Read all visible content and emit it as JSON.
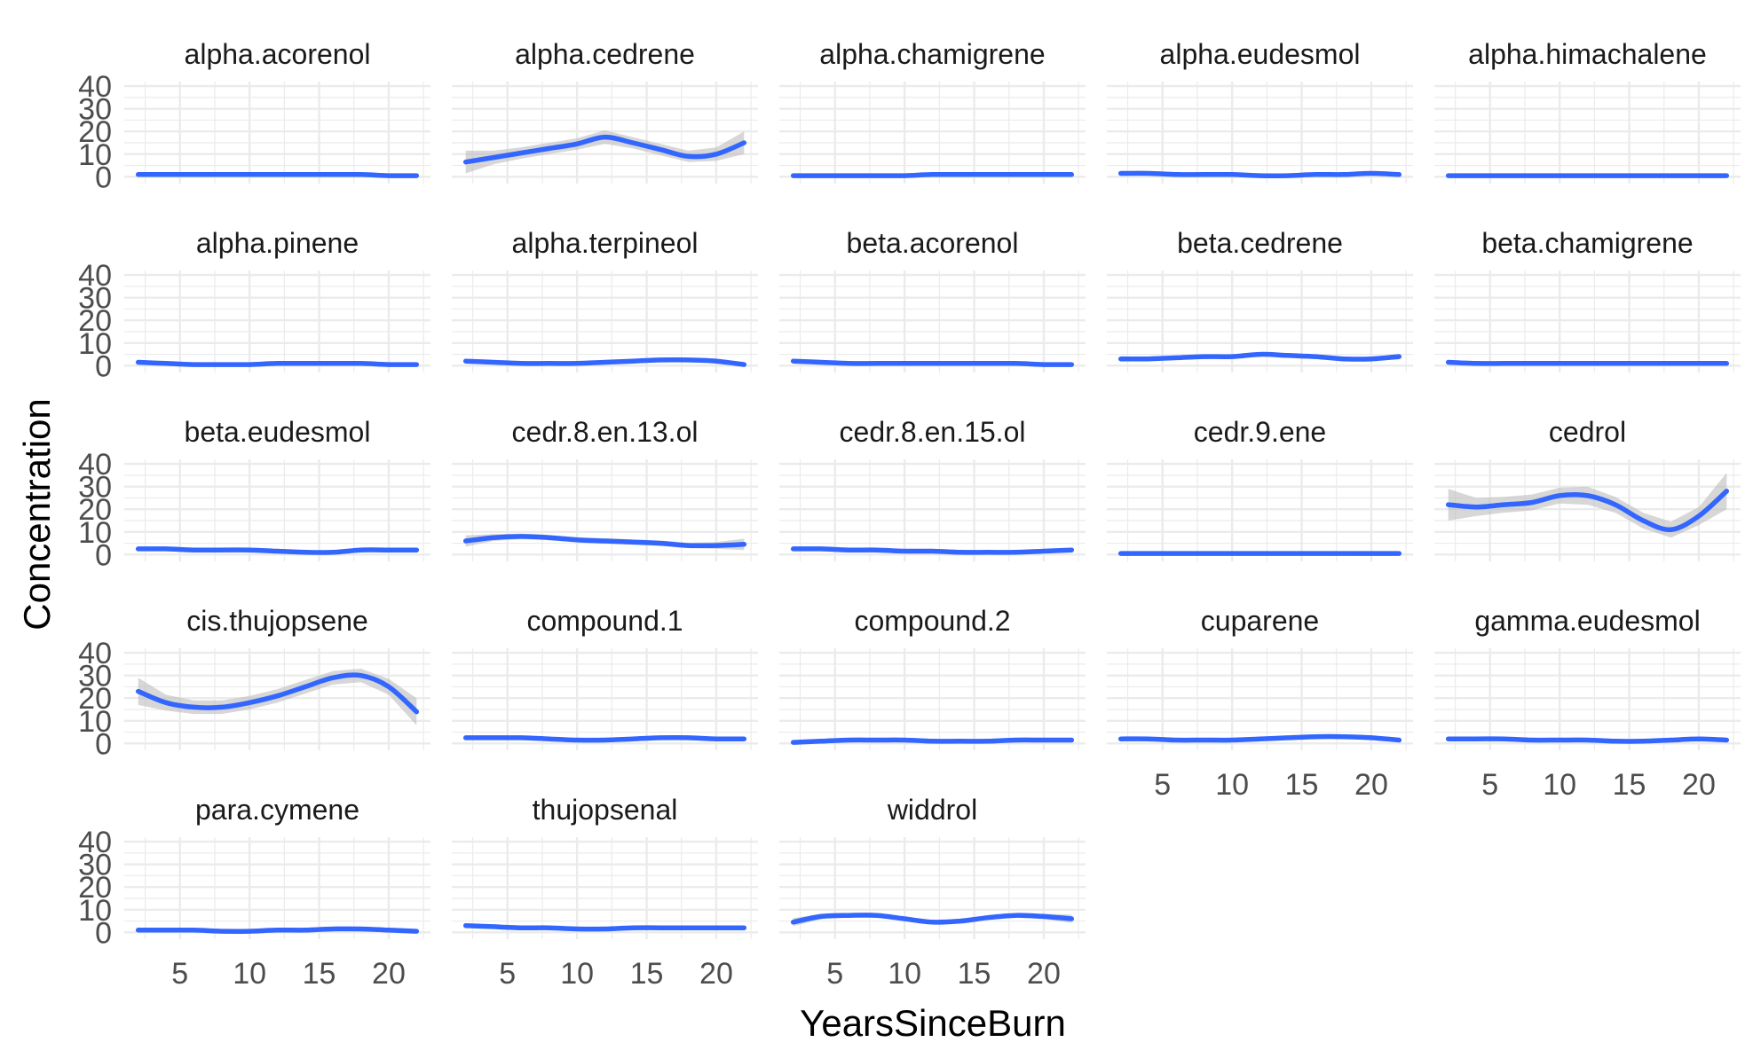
{
  "chart_data": {
    "type": "line",
    "xlabel": "YearsSinceBurn",
    "ylabel": "Concentration",
    "xlim": [
      1,
      23
    ],
    "ylim": [
      -3,
      42
    ],
    "x_ticks": [
      5,
      10,
      15,
      20
    ],
    "y_ticks": [
      0,
      10,
      20,
      30,
      40
    ],
    "grid": true,
    "colors": {
      "line": "#3366FF",
      "band": "#bdbdbd"
    },
    "x": [
      2,
      4,
      6,
      8,
      10,
      12,
      14,
      16,
      18,
      20,
      22
    ],
    "facets": [
      {
        "name": "alpha.acorenol",
        "values": [
          1.0,
          1.0,
          1.0,
          1.0,
          1.0,
          1.0,
          1.0,
          1.0,
          1.0,
          0.5,
          0.5
        ],
        "se": [
          0.8,
          0.6,
          0.6,
          0.6,
          0.6,
          0.6,
          0.6,
          0.6,
          0.6,
          0.6,
          0.8
        ]
      },
      {
        "name": "alpha.cedrene",
        "values": [
          6.5,
          8.5,
          10.5,
          12.5,
          14.5,
          17.5,
          15.0,
          12.0,
          9.0,
          10.0,
          15.0
        ],
        "se": [
          5,
          3,
          2.5,
          2.5,
          2.5,
          3,
          2.5,
          2.5,
          2.5,
          3,
          5
        ]
      },
      {
        "name": "alpha.chamigrene",
        "values": [
          0.5,
          0.5,
          0.5,
          0.5,
          0.5,
          1.0,
          1.0,
          1.0,
          1.0,
          1.0,
          1.0
        ],
        "se": [
          0.8,
          0.6,
          0.6,
          0.6,
          0.6,
          0.6,
          0.6,
          0.6,
          0.6,
          0.6,
          0.8
        ]
      },
      {
        "name": "alpha.eudesmol",
        "values": [
          1.5,
          1.5,
          1.0,
          1.0,
          1.0,
          0.5,
          0.5,
          1.0,
          1.0,
          1.5,
          1.0
        ],
        "se": [
          0.8,
          0.6,
          0.6,
          0.6,
          0.6,
          0.6,
          0.6,
          0.6,
          0.6,
          0.6,
          0.8
        ]
      },
      {
        "name": "alpha.himachalene",
        "values": [
          0.5,
          0.5,
          0.5,
          0.5,
          0.5,
          0.5,
          0.5,
          0.5,
          0.5,
          0.5,
          0.5
        ],
        "se": [
          0.8,
          0.6,
          0.6,
          0.6,
          0.6,
          0.6,
          0.6,
          0.6,
          0.6,
          0.6,
          0.8
        ]
      },
      {
        "name": "alpha.pinene",
        "values": [
          1.5,
          1.0,
          0.5,
          0.5,
          0.5,
          1.0,
          1.0,
          1.0,
          1.0,
          0.5,
          0.5
        ],
        "se": [
          0.8,
          0.6,
          0.6,
          0.6,
          0.6,
          0.6,
          0.6,
          0.6,
          0.6,
          0.6,
          0.8
        ]
      },
      {
        "name": "alpha.terpineol",
        "values": [
          2.0,
          1.5,
          1.0,
          1.0,
          1.0,
          1.5,
          2.0,
          2.5,
          2.5,
          2.0,
          0.5
        ],
        "se": [
          0.8,
          0.6,
          0.6,
          0.6,
          0.6,
          0.6,
          0.6,
          0.6,
          0.6,
          0.6,
          0.8
        ]
      },
      {
        "name": "beta.acorenol",
        "values": [
          2.0,
          1.5,
          1.0,
          1.0,
          1.0,
          1.0,
          1.0,
          1.0,
          1.0,
          0.5,
          0.5
        ],
        "se": [
          0.8,
          0.6,
          0.6,
          0.6,
          0.6,
          0.6,
          0.6,
          0.6,
          0.6,
          0.6,
          0.8
        ]
      },
      {
        "name": "beta.cedrene",
        "values": [
          3.0,
          3.0,
          3.5,
          4.0,
          4.0,
          5.0,
          4.5,
          4.0,
          3.0,
          3.0,
          4.0
        ],
        "se": [
          1.2,
          0.8,
          0.8,
          0.8,
          0.8,
          0.8,
          0.8,
          0.8,
          0.8,
          0.8,
          1.2
        ]
      },
      {
        "name": "beta.chamigrene",
        "values": [
          1.5,
          1.0,
          1.0,
          1.0,
          1.0,
          1.0,
          1.0,
          1.0,
          1.0,
          1.0,
          1.0
        ],
        "se": [
          0.8,
          0.6,
          0.6,
          0.6,
          0.6,
          0.6,
          0.6,
          0.6,
          0.6,
          0.6,
          0.8
        ]
      },
      {
        "name": "beta.eudesmol",
        "values": [
          2.5,
          2.5,
          2.0,
          2.0,
          2.0,
          1.5,
          1.0,
          1.0,
          2.0,
          2.0,
          2.0
        ],
        "se": [
          0.8,
          0.6,
          0.6,
          0.6,
          0.6,
          0.6,
          0.6,
          0.6,
          0.6,
          0.6,
          0.8
        ]
      },
      {
        "name": "cedr.8.en.13.ol",
        "values": [
          6.0,
          7.5,
          8.0,
          7.5,
          6.5,
          6.0,
          5.5,
          5.0,
          4.0,
          4.0,
          4.5
        ],
        "se": [
          2.5,
          1.5,
          1.2,
          1.2,
          1.2,
          1.2,
          1.2,
          1.2,
          1.2,
          1.5,
          2.5
        ]
      },
      {
        "name": "cedr.8.en.15.ol",
        "values": [
          2.5,
          2.5,
          2.0,
          2.0,
          1.5,
          1.5,
          1.0,
          1.0,
          1.0,
          1.5,
          2.0
        ],
        "se": [
          0.8,
          0.6,
          0.6,
          0.6,
          0.6,
          0.6,
          0.6,
          0.6,
          0.6,
          0.6,
          0.8
        ]
      },
      {
        "name": "cedr.9.ene",
        "values": [
          0.5,
          0.5,
          0.5,
          0.5,
          0.5,
          0.5,
          0.5,
          0.5,
          0.5,
          0.5,
          0.5
        ],
        "se": [
          0.8,
          0.6,
          0.6,
          0.6,
          0.6,
          0.6,
          0.6,
          0.6,
          0.6,
          0.6,
          0.8
        ]
      },
      {
        "name": "cedrol",
        "values": [
          22,
          21,
          22,
          23,
          26,
          26,
          22,
          15,
          11,
          17,
          28
        ],
        "se": [
          7,
          4,
          3.5,
          3.5,
          3.5,
          4,
          3.5,
          3.5,
          3.5,
          4,
          8
        ]
      },
      {
        "name": "cis.thujopsene",
        "values": [
          23,
          18,
          16,
          16,
          18,
          21,
          25,
          29,
          30,
          25,
          14
        ],
        "se": [
          6,
          3.5,
          3,
          3,
          3,
          3,
          3,
          3,
          3,
          3.5,
          6
        ]
      },
      {
        "name": "compound.1",
        "values": [
          2.5,
          2.5,
          2.5,
          2.0,
          1.5,
          1.5,
          2.0,
          2.5,
          2.5,
          2.0,
          2.0
        ],
        "se": [
          0.8,
          0.6,
          0.6,
          0.6,
          0.6,
          0.6,
          0.6,
          0.6,
          0.6,
          0.6,
          0.8
        ]
      },
      {
        "name": "compound.2",
        "values": [
          0.5,
          1.0,
          1.5,
          1.5,
          1.5,
          1.0,
          1.0,
          1.0,
          1.5,
          1.5,
          1.5
        ],
        "se": [
          0.8,
          0.6,
          0.6,
          0.6,
          0.6,
          0.6,
          0.6,
          0.6,
          0.6,
          0.6,
          0.8
        ]
      },
      {
        "name": "cuparene",
        "values": [
          2.0,
          2.0,
          1.5,
          1.5,
          1.5,
          2.0,
          2.5,
          3.0,
          3.0,
          2.5,
          1.5
        ],
        "se": [
          0.8,
          0.6,
          0.6,
          0.6,
          0.6,
          0.6,
          0.6,
          0.6,
          0.6,
          0.6,
          0.8
        ]
      },
      {
        "name": "gamma.eudesmol",
        "values": [
          2.0,
          2.0,
          2.0,
          1.5,
          1.5,
          1.5,
          1.0,
          1.0,
          1.5,
          2.0,
          1.5
        ],
        "se": [
          0.8,
          0.6,
          0.6,
          0.6,
          0.6,
          0.6,
          0.6,
          0.6,
          0.6,
          0.6,
          0.8
        ]
      },
      {
        "name": "para.cymene",
        "values": [
          1.0,
          1.0,
          1.0,
          0.5,
          0.5,
          1.0,
          1.0,
          1.5,
          1.5,
          1.0,
          0.5
        ],
        "se": [
          0.8,
          0.6,
          0.6,
          0.6,
          0.6,
          0.6,
          0.6,
          0.6,
          0.6,
          0.6,
          0.8
        ]
      },
      {
        "name": "thujopsenal",
        "values": [
          3.0,
          2.5,
          2.0,
          2.0,
          1.5,
          1.5,
          2.0,
          2.0,
          2.0,
          2.0,
          2.0
        ],
        "se": [
          0.8,
          0.6,
          0.6,
          0.6,
          0.6,
          0.6,
          0.6,
          0.6,
          0.6,
          0.6,
          0.8
        ]
      },
      {
        "name": "widdrol",
        "values": [
          4.5,
          7.0,
          7.5,
          7.5,
          6.0,
          4.5,
          5.0,
          6.5,
          7.5,
          7.0,
          6.0
        ],
        "se": [
          1.8,
          1.2,
          1.0,
          1.0,
          1.0,
          1.0,
          1.0,
          1.0,
          1.0,
          1.2,
          1.8
        ]
      }
    ]
  }
}
